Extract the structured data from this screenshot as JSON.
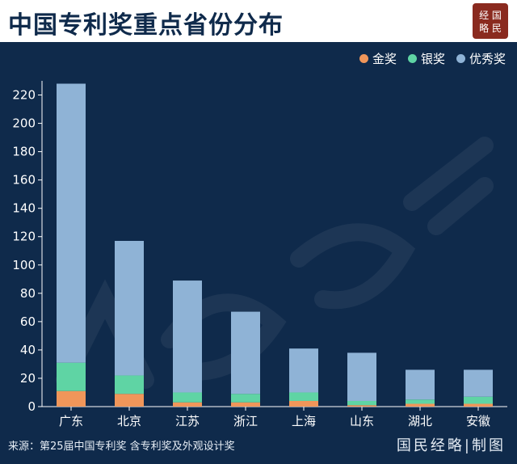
{
  "header": {
    "title": "中国专利奖重点省份分布",
    "logo_text": "经略国民"
  },
  "colors": {
    "gold": "#f0965a",
    "silver": "#5fd4a4",
    "excellence": "#8fb3d6",
    "background": "#0f2a4b"
  },
  "chart_data": {
    "type": "bar",
    "stacked": true,
    "title": "中国专利奖重点省份分布",
    "xlabel": "",
    "ylabel": "",
    "ylim": [
      0,
      230
    ],
    "yticks": [
      0,
      20,
      40,
      60,
      80,
      100,
      120,
      140,
      160,
      180,
      200,
      220
    ],
    "categories": [
      "广东",
      "北京",
      "江苏",
      "浙江",
      "上海",
      "山东",
      "湖北",
      "安徽"
    ],
    "series": [
      {
        "name": "金奖",
        "color": "#f0965a",
        "values": [
          11,
          9,
          3,
          3,
          4,
          1,
          2,
          2
        ]
      },
      {
        "name": "银奖",
        "color": "#5fd4a4",
        "values": [
          20,
          13,
          7,
          6,
          6,
          3,
          3,
          5
        ]
      },
      {
        "name": "优秀奖",
        "color": "#8fb3d6",
        "values": [
          197,
          95,
          79,
          58,
          31,
          34,
          21,
          19
        ]
      }
    ],
    "legend_position": "top-right",
    "grid": false
  },
  "footer": {
    "source": "来源：第25届中国专利奖 含专利奖及外观设计奖",
    "brand": "国民经略|制图"
  }
}
